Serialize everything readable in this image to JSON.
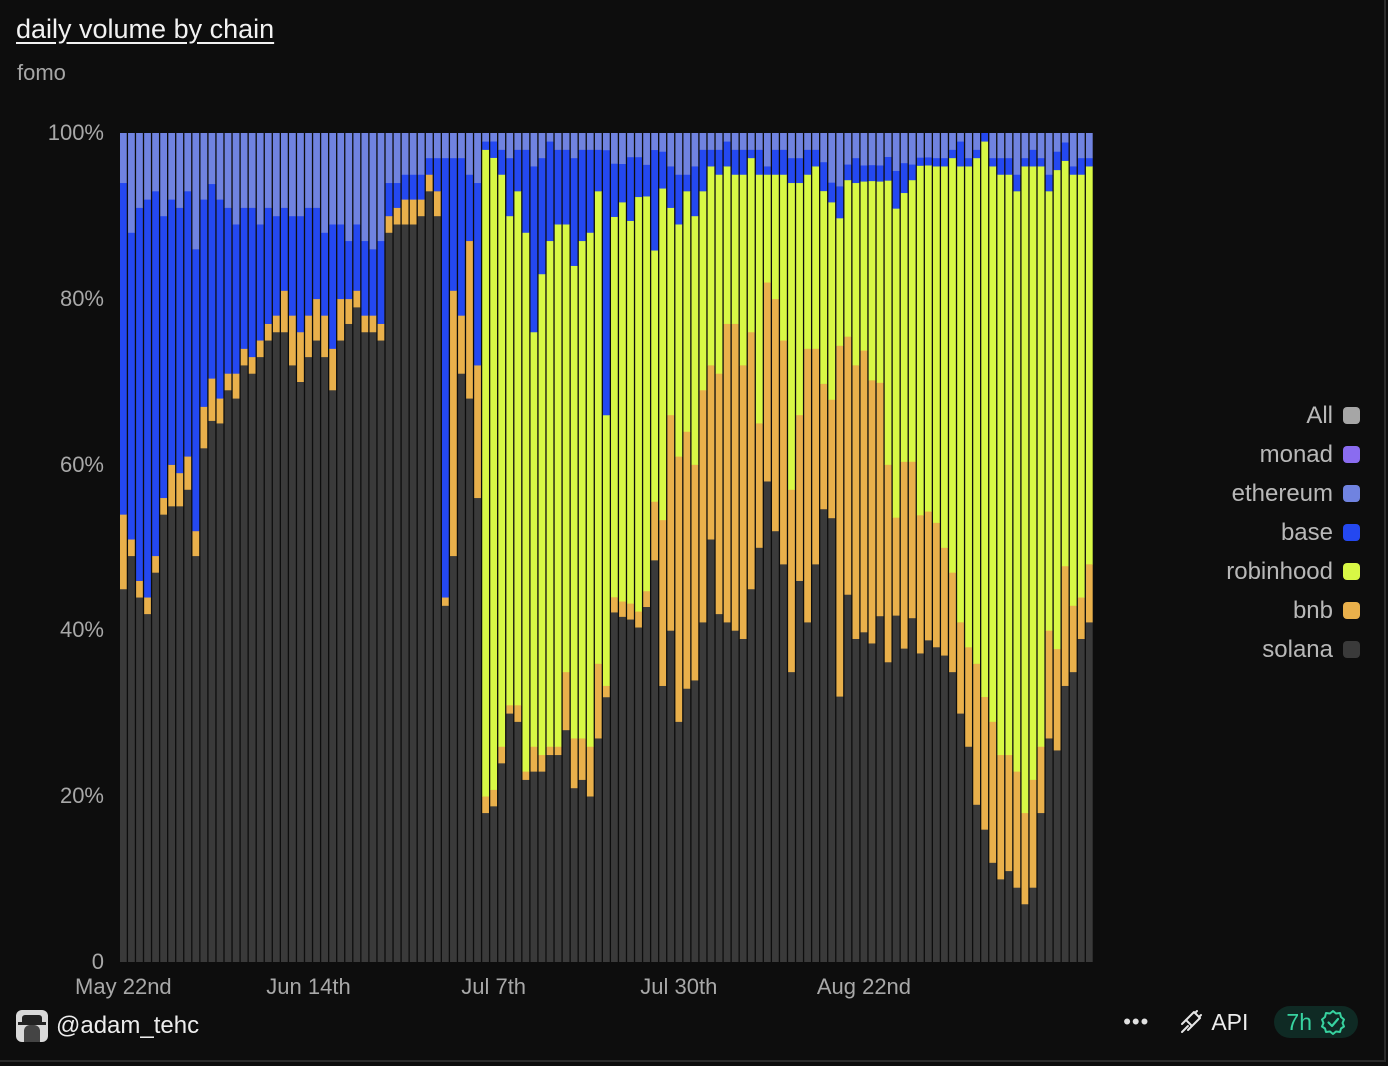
{
  "header": {
    "title": "daily volume by chain",
    "subtitle": "fomo"
  },
  "footer": {
    "username": "@adam_tehc",
    "menu_label": "•••",
    "api_label": "API",
    "freshness": "7h"
  },
  "colors": {
    "solana": "#3a3a3a",
    "bnb": "#e9b04b",
    "robinhood": "#d8f845",
    "base": "#2448f0",
    "ethereum": "#7083e0",
    "monad": "#8a6cf0",
    "all": "#9e9e9e"
  },
  "legend": [
    {
      "name": "All",
      "color": "#a6a6a6"
    },
    {
      "name": "monad",
      "color": "#8a6cf0"
    },
    {
      "name": "ethereum",
      "color": "#7083e0"
    },
    {
      "name": "base",
      "color": "#2448f0"
    },
    {
      "name": "robinhood",
      "color": "#d8f845"
    },
    {
      "name": "bnb",
      "color": "#e9b04b"
    },
    {
      "name": "solana",
      "color": "#3a3a3a"
    }
  ],
  "chart_data": {
    "type": "bar",
    "stacked": true,
    "normalized": true,
    "title": "daily volume by chain",
    "subtitle": "fomo",
    "ylim": [
      0,
      100
    ],
    "yticks": [
      "0",
      "20%",
      "40%",
      "60%",
      "80%",
      "100%"
    ],
    "xticks": [
      {
        "label": "May 22nd",
        "date": "2025-05-22"
      },
      {
        "label": "Jun 14th",
        "date": "2025-06-14"
      },
      {
        "label": "Jul 7th",
        "date": "2025-07-07"
      },
      {
        "label": "Jul 30th",
        "date": "2025-07-30"
      },
      {
        "label": "Aug 22nd",
        "date": "2025-08-22"
      }
    ],
    "start_date": "2025-05-22",
    "legend_position": "right",
    "series_order": [
      "solana",
      "bnb",
      "robinhood",
      "base",
      "ethereum",
      "monad"
    ],
    "series": [
      {
        "name": "solana",
        "values": [
          45,
          49,
          44,
          42,
          47,
          54,
          55,
          55,
          57,
          49,
          62,
          64,
          65,
          69,
          68,
          72,
          71,
          73,
          75,
          76,
          76,
          72,
          70,
          73,
          75,
          73,
          69,
          75,
          77,
          79,
          76,
          76,
          75,
          88,
          89,
          89,
          89,
          90,
          93,
          90,
          43,
          49,
          71,
          68,
          56,
          18,
          19,
          24,
          30,
          29,
          22,
          23,
          23,
          25,
          25,
          28,
          21,
          22,
          20,
          27,
          47,
          46,
          45,
          43,
          42,
          45,
          48,
          30,
          40,
          29,
          33,
          34,
          41,
          51,
          42,
          41,
          40,
          39,
          45,
          50,
          58,
          52,
          48,
          35,
          46,
          41,
          48,
          47,
          45,
          25,
          47,
          39,
          41,
          40,
          43,
          38,
          46,
          42,
          44,
          38,
          40,
          38,
          37,
          35,
          30,
          26,
          19,
          16,
          12,
          10,
          11,
          9,
          7,
          9,
          18,
          27,
          23,
          30,
          35,
          39,
          41
        ]
      },
      {
        "name": "bnb",
        "values": [
          9,
          2,
          2,
          2,
          2,
          2,
          5,
          4,
          4,
          3,
          5,
          5,
          3,
          2,
          3,
          2,
          2,
          2,
          2,
          2,
          5,
          6,
          6,
          5,
          5,
          5,
          5,
          5,
          3,
          2,
          2,
          2,
          2,
          2,
          2,
          3,
          3,
          2,
          2,
          3,
          1,
          32,
          7,
          19,
          16,
          2,
          2,
          2,
          1,
          2,
          1,
          3,
          2,
          1,
          1,
          7,
          6,
          5,
          6,
          9,
          2,
          2,
          2,
          2,
          2,
          2,
          7,
          18,
          26,
          32,
          31,
          26,
          28,
          21,
          29,
          36,
          37,
          33,
          31,
          15,
          24,
          28,
          27,
          22,
          20,
          33,
          26,
          13,
          12,
          33,
          33,
          33,
          35,
          33,
          29,
          25,
          13,
          25,
          20,
          17,
          16,
          15,
          13,
          12,
          11,
          12,
          17,
          16,
          17,
          15,
          14,
          14,
          11,
          13,
          8,
          13,
          11,
          13,
          8,
          5,
          7
        ]
      },
      {
        "name": "robinhood",
        "values": [
          0,
          0,
          0,
          0,
          0,
          0,
          0,
          0,
          0,
          0,
          0,
          0,
          0,
          0,
          0,
          0,
          0,
          0,
          0,
          0,
          0,
          0,
          0,
          0,
          0,
          0,
          0,
          0,
          0,
          0,
          0,
          0,
          0,
          0,
          0,
          0,
          0,
          0,
          0,
          0,
          0,
          0,
          0,
          0,
          0,
          78,
          77,
          69,
          59,
          62,
          65,
          50,
          58,
          61,
          63,
          54,
          57,
          60,
          62,
          57,
          48,
          50,
          52,
          48,
          52,
          50,
          30,
          36,
          25,
          28,
          29,
          30,
          24,
          24,
          24,
          19,
          18,
          23,
          21,
          30,
          13,
          15,
          20,
          37,
          28,
          21,
          22,
          20,
          20,
          12,
          20,
          22,
          21,
          25,
          25,
          36,
          41,
          36,
          36,
          43,
          43,
          43,
          46,
          50,
          55,
          58,
          61,
          67,
          67,
          70,
          70,
          70,
          78,
          74,
          70,
          53,
          52,
          44,
          52,
          51,
          48
        ]
      },
      {
        "name": "base",
        "values": [
          40,
          37,
          45,
          48,
          44,
          34,
          32,
          32,
          32,
          34,
          25,
          23,
          24,
          20,
          18,
          17,
          18,
          14,
          14,
          12,
          10,
          12,
          14,
          13,
          11,
          10,
          15,
          9,
          7,
          8,
          9,
          8,
          10,
          4,
          3,
          3,
          3,
          3,
          2,
          4,
          53,
          16,
          19,
          8,
          22,
          1,
          2,
          3,
          7,
          5,
          10,
          20,
          14,
          12,
          9,
          9,
          13,
          11,
          10,
          5,
          47,
          7,
          5,
          8,
          5,
          4,
          12,
          4,
          5,
          6,
          2,
          6,
          5,
          2,
          3,
          3,
          3,
          3,
          1,
          3,
          1,
          3,
          3,
          3,
          3,
          3,
          2,
          3,
          2,
          3,
          2,
          3,
          2,
          2,
          2,
          3,
          5,
          4,
          2,
          1,
          1,
          1,
          1,
          1,
          3,
          1,
          1,
          1,
          1,
          2,
          2,
          2,
          1,
          2,
          1,
          2,
          2,
          2,
          1,
          2,
          1
        ]
      },
      {
        "name": "ethereum",
        "values": [
          6,
          12,
          9,
          8,
          7,
          10,
          8,
          9,
          7,
          14,
          8,
          6,
          8,
          9,
          11,
          9,
          9,
          11,
          9,
          10,
          9,
          10,
          10,
          9,
          9,
          12,
          11,
          11,
          13,
          11,
          13,
          14,
          13,
          6,
          6,
          5,
          5,
          5,
          3,
          3,
          3,
          3,
          3,
          5,
          6,
          1,
          1,
          2,
          3,
          2,
          2,
          4,
          3,
          1,
          2,
          2,
          3,
          2,
          2,
          2,
          3,
          4,
          4,
          3,
          3,
          4,
          2,
          2,
          4,
          5,
          5,
          4,
          2,
          2,
          2,
          1,
          2,
          2,
          2,
          2,
          4,
          2,
          2,
          3,
          3,
          2,
          2,
          3,
          5,
          5,
          4,
          3,
          4,
          4,
          4,
          3,
          5,
          4,
          4,
          3,
          3,
          3,
          3,
          2,
          1,
          3,
          2,
          0,
          3,
          3,
          3,
          5,
          3,
          2,
          3,
          5,
          2,
          1,
          4,
          3,
          3
        ]
      },
      {
        "name": "monad",
        "values": [
          0,
          0,
          0,
          0,
          0,
          0,
          0,
          0,
          0,
          0,
          0,
          0,
          0,
          0,
          0,
          0,
          0,
          0,
          0,
          0,
          0,
          0,
          0,
          0,
          0,
          0,
          0,
          0,
          0,
          0,
          0,
          0,
          0,
          0,
          0,
          0,
          0,
          0,
          0,
          0,
          0,
          0,
          0,
          0,
          0,
          0,
          0,
          0,
          0,
          0,
          0,
          0,
          0,
          0,
          0,
          0,
          0,
          0,
          0,
          0,
          0,
          0,
          0,
          0,
          0,
          0,
          0,
          0,
          0,
          0,
          0,
          0,
          0,
          0,
          0,
          0,
          0,
          0,
          0,
          0,
          0,
          0,
          0,
          0,
          0,
          0,
          0,
          0,
          0,
          0,
          0,
          0,
          0,
          0,
          0,
          0,
          0,
          0,
          0,
          0,
          0,
          0,
          0,
          0,
          0,
          0,
          0,
          0,
          0,
          0,
          0,
          0,
          0,
          0,
          0,
          0,
          0,
          0,
          0,
          0,
          0
        ]
      }
    ]
  }
}
